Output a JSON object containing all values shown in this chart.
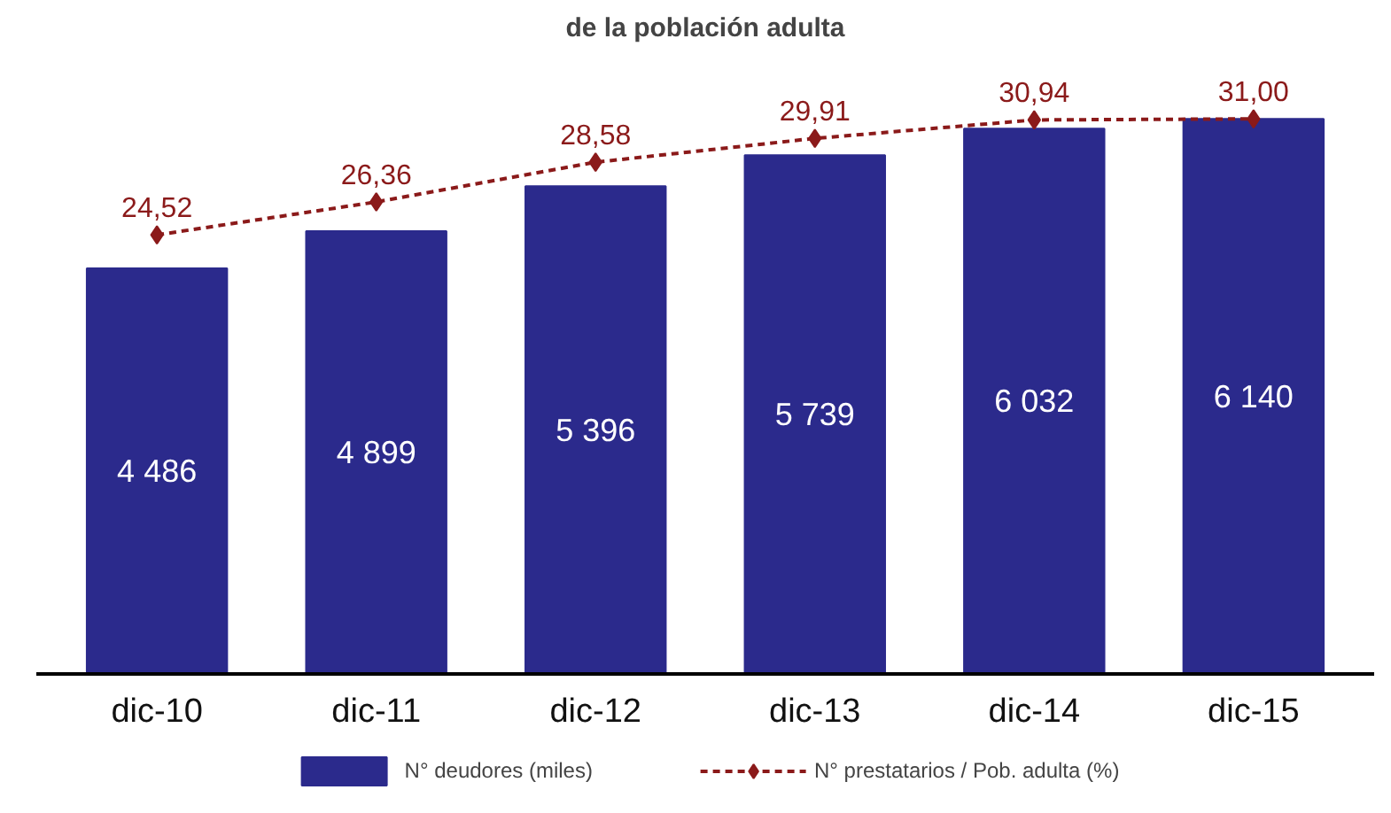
{
  "chart_data": {
    "type": "bar",
    "title": "de la población adulta",
    "categories": [
      "dic-10",
      "dic-11",
      "dic-12",
      "dic-13",
      "dic-14",
      "dic-15"
    ],
    "series": [
      {
        "name": "N° deudores (miles)",
        "color": "#2b2a8c",
        "values": [
          4486,
          4899,
          5396,
          5739,
          6032,
          6140
        ],
        "value_labels": [
          "4 486",
          "4 899",
          "5 396",
          "5 739",
          "6 032",
          "6 140"
        ]
      },
      {
        "name": "N° prestatarios / Pob. adulta (%)",
        "type": "line",
        "axis": "y2",
        "color": "#8b1a1a",
        "marker": "diamond",
        "line_style": "dashed",
        "values": [
          24.52,
          26.36,
          28.58,
          29.91,
          30.94,
          31.0
        ],
        "value_labels": [
          "24,52",
          "26,36",
          "28,58",
          "29,91",
          "30,94",
          "31,00"
        ]
      }
    ],
    "tick_labels": "x",
    "grid": false,
    "legend": "bottom"
  }
}
